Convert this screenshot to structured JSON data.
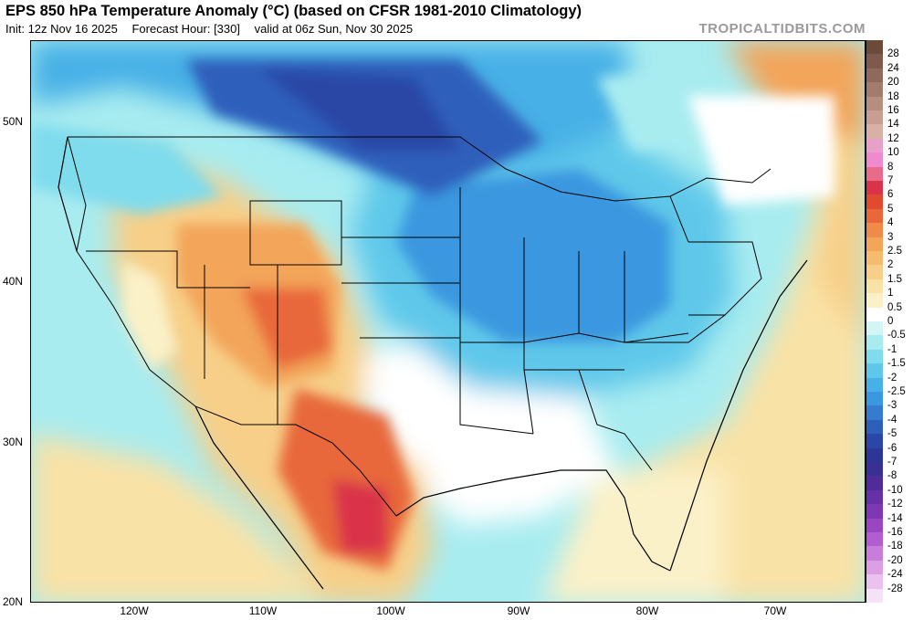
{
  "header": {
    "title": "EPS 850 hPa Temperature Anomaly (°C) (based on CFSR 1981-2010 Climatology)",
    "init": "Init: 12z Nov 16 2025",
    "forecast_hour": "Forecast Hour: [330]",
    "valid": "valid at 06z Sun, Nov 30 2025",
    "brand": "TROPICALTIDBITS.COM"
  },
  "map": {
    "lat_labels": [
      "50N",
      "40N",
      "30N",
      "20N"
    ],
    "lon_labels": [
      "120W",
      "110W",
      "100W",
      "90W",
      "80W",
      "70W"
    ]
  },
  "colorbar": {
    "labels": [
      "28",
      "24",
      "20",
      "18",
      "16",
      "14",
      "12",
      "10",
      "8",
      "7",
      "6",
      "5",
      "4",
      "3",
      "2.5",
      "2",
      "1.5",
      "1",
      "0.5",
      "0",
      "-0.5",
      "-1",
      "-1.5",
      "-2",
      "-2.5",
      "-3",
      "-4",
      "-5",
      "-6",
      "-7",
      "-8",
      "-10",
      "-12",
      "-14",
      "-16",
      "-18",
      "-20",
      "-24",
      "-28"
    ],
    "colors": [
      "#6b4a3a",
      "#7d5a4b",
      "#8f6a5c",
      "#a27d6e",
      "#b68e80",
      "#c89e92",
      "#d9b0a5",
      "#e8a0c8",
      "#f08ad0",
      "#e86b8a",
      "#d9334a",
      "#e04a2e",
      "#e8683a",
      "#f08a4a",
      "#f3a55a",
      "#f5bb6e",
      "#f7cf88",
      "#f9e2a6",
      "#fbf1c8",
      "#ffffff",
      "#d4f5f5",
      "#a8ecf0",
      "#7fdcec",
      "#5fc8ea",
      "#47b0e6",
      "#3b97df",
      "#357cd0",
      "#2d5fbb",
      "#2a46a6",
      "#2d3597",
      "#3a2f92",
      "#4f2c9a",
      "#6630a6",
      "#7f38b4",
      "#9a46c2",
      "#b35ed0",
      "#c97ddb",
      "#dc9fe4",
      "#eac2ed",
      "#f5e2f6"
    ]
  }
}
